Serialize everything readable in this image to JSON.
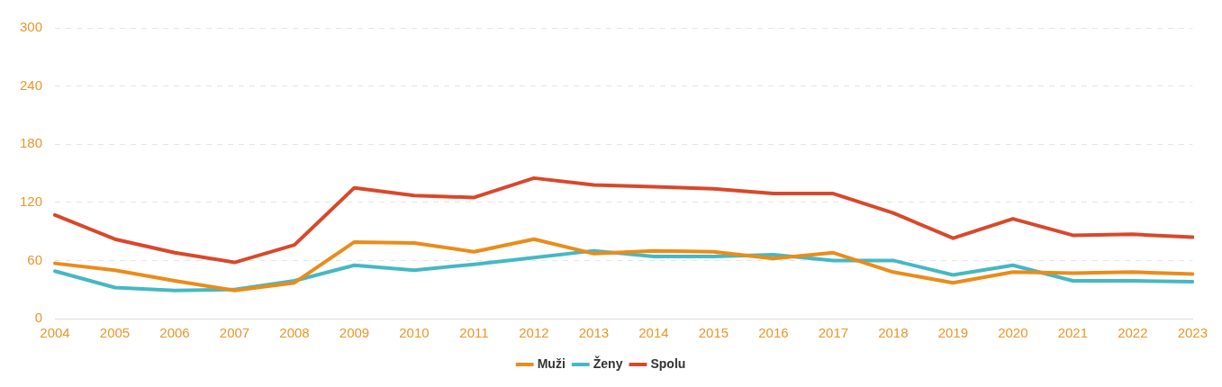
{
  "chart_data": {
    "type": "line",
    "categories": [
      "2004",
      "2005",
      "2006",
      "2007",
      "2008",
      "2009",
      "2010",
      "2011",
      "2012",
      "2013",
      "2014",
      "2015",
      "2016",
      "2017",
      "2018",
      "2019",
      "2020",
      "2021",
      "2022",
      "2023"
    ],
    "series": [
      {
        "name": "Muži",
        "color": "#ea8c1a",
        "values": [
          57,
          50,
          39,
          29,
          37,
          79,
          78,
          69,
          82,
          67,
          70,
          69,
          62,
          68,
          48,
          37,
          48,
          47,
          48,
          46
        ]
      },
      {
        "name": "Ženy",
        "color": "#45b8c4",
        "values": [
          49,
          32,
          29,
          30,
          39,
          55,
          50,
          56,
          63,
          70,
          64,
          64,
          66,
          60,
          60,
          45,
          55,
          39,
          39,
          38
        ]
      },
      {
        "name": "Spolu",
        "color": "#d9482a",
        "values": [
          107,
          82,
          68,
          58,
          76,
          135,
          127,
          125,
          145,
          138,
          136,
          134,
          129,
          129,
          109,
          83,
          103,
          86,
          87,
          84
        ]
      }
    ],
    "ylim": [
      0,
      300
    ],
    "yticks": [
      0,
      60,
      120,
      180,
      240,
      300
    ],
    "grid": "y",
    "legend": "bottom",
    "marker": "none",
    "line_style": "solid"
  }
}
